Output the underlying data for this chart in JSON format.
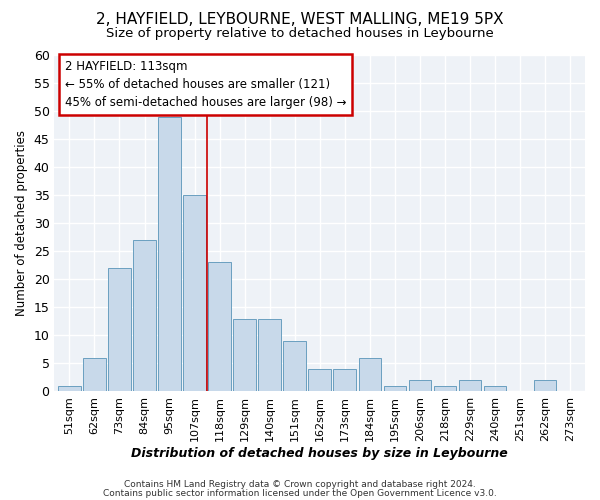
{
  "title": "2, HAYFIELD, LEYBOURNE, WEST MALLING, ME19 5PX",
  "subtitle": "Size of property relative to detached houses in Leybourne",
  "xlabel": "Distribution of detached houses by size in Leybourne",
  "ylabel": "Number of detached properties",
  "bar_color": "#c8d9ea",
  "bar_edge_color": "#6a9fc0",
  "categories": [
    "51sqm",
    "62sqm",
    "73sqm",
    "84sqm",
    "95sqm",
    "107sqm",
    "118sqm",
    "129sqm",
    "140sqm",
    "151sqm",
    "162sqm",
    "173sqm",
    "184sqm",
    "195sqm",
    "206sqm",
    "218sqm",
    "229sqm",
    "240sqm",
    "251sqm",
    "262sqm",
    "273sqm"
  ],
  "values": [
    1,
    6,
    22,
    27,
    49,
    35,
    23,
    13,
    13,
    9,
    4,
    4,
    6,
    1,
    2,
    1,
    2,
    1,
    0,
    2,
    0
  ],
  "ylim": [
    0,
    60
  ],
  "yticks": [
    0,
    5,
    10,
    15,
    20,
    25,
    30,
    35,
    40,
    45,
    50,
    55,
    60
  ],
  "vline_x": 5.5,
  "annotation_line1": "2 HAYFIELD: 113sqm",
  "annotation_line2": "← 55% of detached houses are smaller (121)",
  "annotation_line3": "45% of semi-detached houses are larger (98) →",
  "annotation_box_color": "#ffffff",
  "annotation_box_edge": "#cc0000",
  "footer1": "Contains HM Land Registry data © Crown copyright and database right 2024.",
  "footer2": "Contains public sector information licensed under the Open Government Licence v3.0.",
  "vline_color": "#cc0000",
  "background_color": "#eef2f7",
  "grid_color": "#ffffff"
}
